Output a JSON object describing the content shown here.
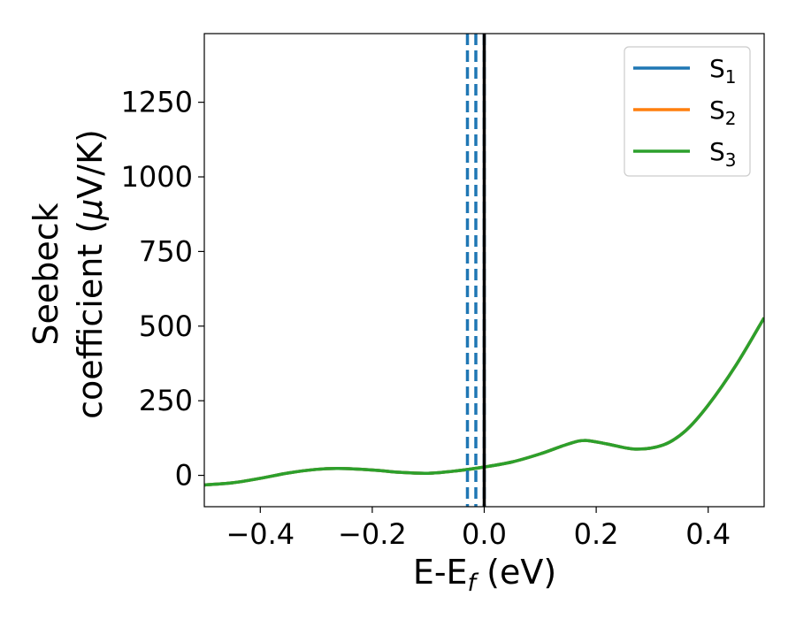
{
  "chart_data": {
    "type": "line",
    "title": "",
    "xlabel": {
      "main": "E-E",
      "sub": "f",
      "tail": " (eV)"
    },
    "ylabel": {
      "line1": "Seebeck",
      "line2_prefix": "coefficient  (",
      "line2_mu": "μ",
      "line2_suffix": "V/K)"
    },
    "xlim": [
      -0.5,
      0.5
    ],
    "ylim": [
      -105,
      1480
    ],
    "xticks": [
      -0.4,
      -0.2,
      0.0,
      0.2,
      0.4
    ],
    "xtick_labels": [
      "−0.4",
      "−0.2",
      "0.0",
      "0.2",
      "0.4"
    ],
    "yticks": [
      0,
      250,
      500,
      750,
      1000,
      1250
    ],
    "ytick_labels": [
      "0",
      "250",
      "500",
      "750",
      "1000",
      "1250"
    ],
    "grid": false,
    "legend_position": "top-right",
    "colors": {
      "S1": "#1f77b4",
      "S2": "#ff7f0e",
      "S3": "#2ca02c",
      "fermi": "#000000"
    },
    "series": [
      {
        "name": "S1",
        "label_main": "S",
        "label_sub": "1",
        "color": "#1f77b4",
        "x": [
          -0.5,
          -0.45,
          -0.4,
          -0.35,
          -0.3,
          -0.26,
          -0.2,
          -0.15,
          -0.1,
          -0.05,
          0.0,
          0.05,
          0.1,
          0.15,
          0.18,
          0.22,
          0.27,
          0.32,
          0.36,
          0.4,
          0.45,
          0.5
        ],
        "y": [
          -32,
          -25,
          -10,
          8,
          20,
          23,
          18,
          10,
          7,
          15,
          28,
          45,
          72,
          105,
          117,
          105,
          88,
          102,
          150,
          235,
          370,
          528
        ]
      },
      {
        "name": "S2",
        "label_main": "S",
        "label_sub": "2",
        "color": "#ff7f0e",
        "x": [
          -0.5,
          -0.45,
          -0.4,
          -0.35,
          -0.3,
          -0.26,
          -0.2,
          -0.15,
          -0.1,
          -0.05,
          0.0,
          0.05,
          0.1,
          0.15,
          0.18,
          0.22,
          0.27,
          0.32,
          0.36,
          0.4,
          0.45,
          0.5
        ],
        "y": [
          -32,
          -25,
          -10,
          8,
          20,
          23,
          18,
          10,
          7,
          15,
          28,
          45,
          72,
          105,
          117,
          105,
          88,
          102,
          150,
          235,
          370,
          528
        ]
      },
      {
        "name": "S3",
        "label_main": "S",
        "label_sub": "3",
        "color": "#2ca02c",
        "x": [
          -0.5,
          -0.45,
          -0.4,
          -0.35,
          -0.3,
          -0.26,
          -0.2,
          -0.15,
          -0.1,
          -0.05,
          0.0,
          0.05,
          0.1,
          0.15,
          0.18,
          0.22,
          0.27,
          0.32,
          0.36,
          0.4,
          0.45,
          0.5
        ],
        "y": [
          -32,
          -25,
          -10,
          8,
          20,
          23,
          18,
          10,
          7,
          15,
          28,
          45,
          72,
          105,
          117,
          105,
          88,
          102,
          150,
          235,
          370,
          528
        ]
      }
    ],
    "vertical_lines": [
      {
        "x": -0.03,
        "style": "dashed",
        "color": "#1f77b4"
      },
      {
        "x": -0.015,
        "style": "dashed",
        "color": "#1f77b4"
      },
      {
        "x": 0.0,
        "style": "dashed",
        "color": "#1f77b4"
      },
      {
        "x": 0.0,
        "style": "solid",
        "color": "#000000"
      }
    ]
  }
}
